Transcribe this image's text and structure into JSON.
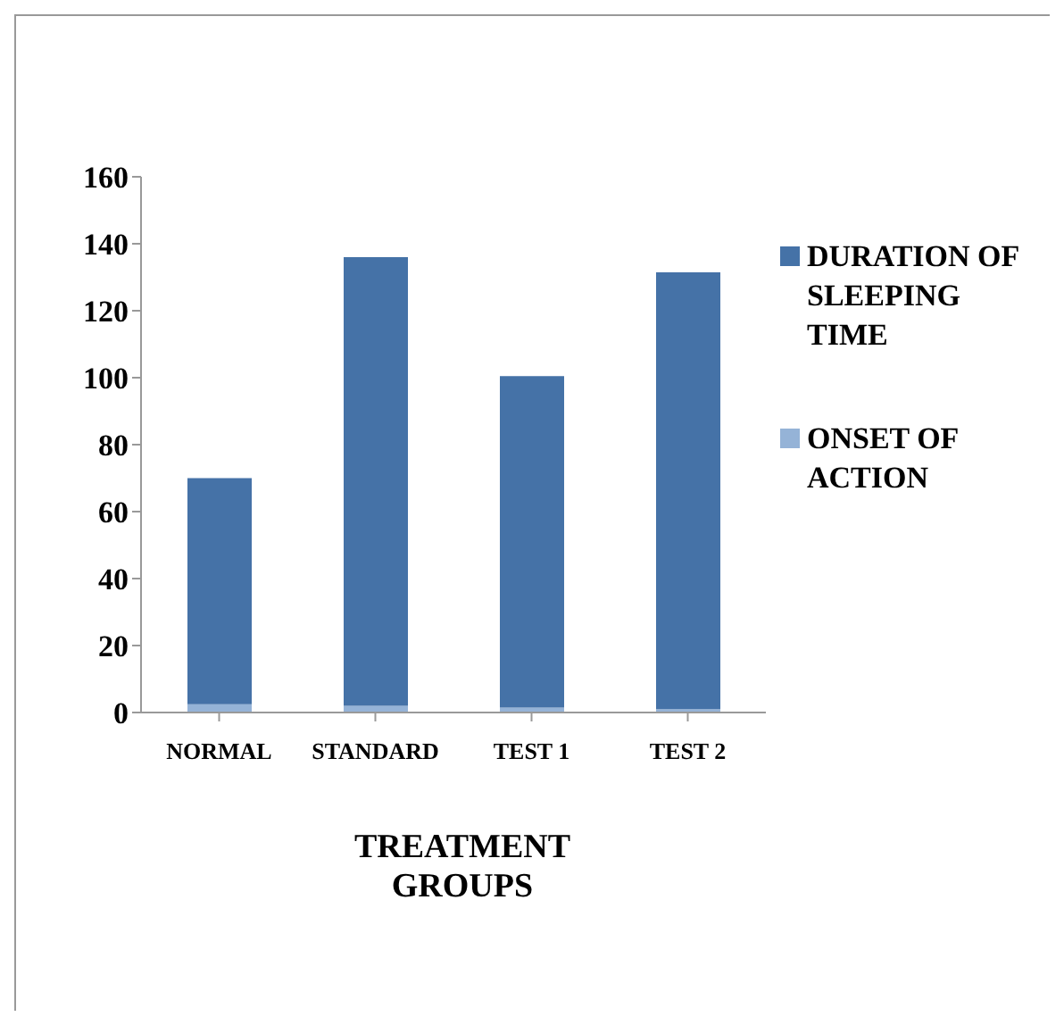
{
  "chart_data": {
    "type": "bar",
    "stacked": true,
    "xlabel": "TREATMENT GROUPS",
    "categories": [
      "NORMAL",
      "STANDARD",
      "TEST 1",
      "TEST 2"
    ],
    "series": [
      {
        "name": "ONSET OF ACTION",
        "color": "#95b3d7",
        "values": [
          2.5,
          2,
          1.5,
          1
        ]
      },
      {
        "name": "DURATION OF SLEEPING TIME",
        "color": "#4572a7",
        "values": [
          67.5,
          134,
          99,
          130.5
        ]
      }
    ],
    "ylim": [
      0,
      160
    ],
    "yticks": [
      0,
      20,
      40,
      60,
      80,
      100,
      120,
      140,
      160
    ],
    "grid": false,
    "legend": "right"
  }
}
